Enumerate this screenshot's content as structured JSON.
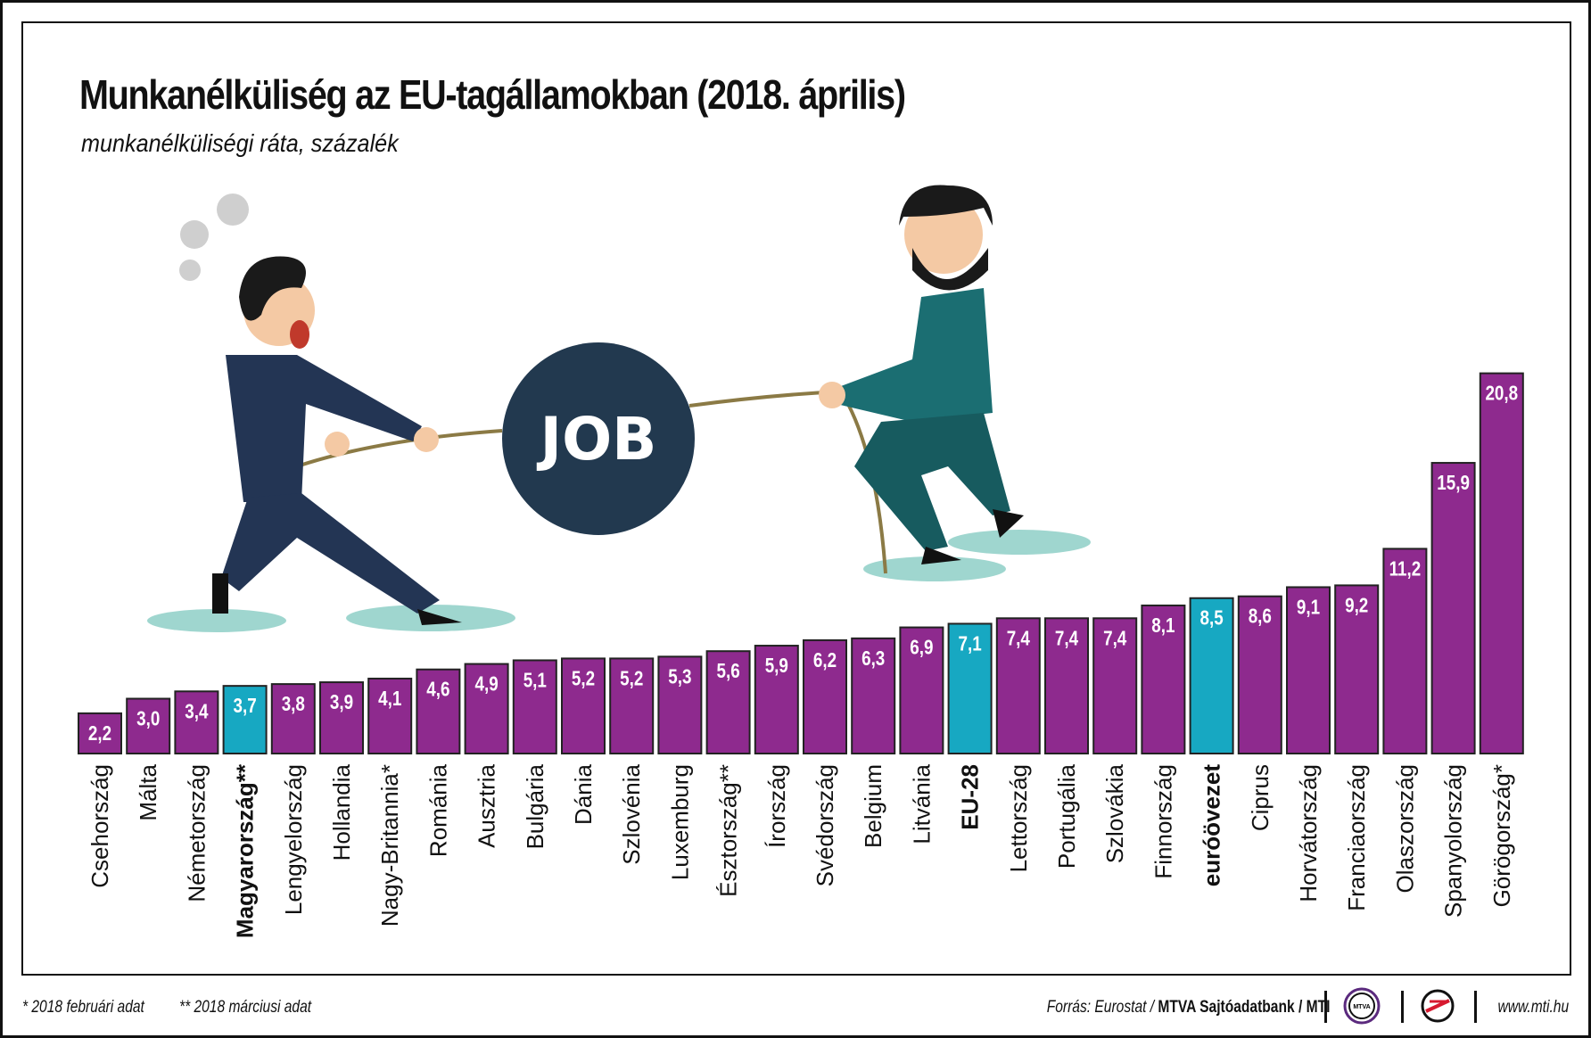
{
  "title": "Munkanélküliség az EU-tagállamokban (2018. április)",
  "subtitle": "munkanélküliségi ráta, százalék",
  "illustration": {
    "ball_text": "JOB"
  },
  "footer": {
    "note1": "* 2018 februári adat",
    "note2": "** 2018 márciusi adat",
    "source_prefix": "Forrás: Eurostat / ",
    "source_bold": "MTVA Sajtóadatbank",
    "source_suffix": " / MTI",
    "logo1_text": "MTVA",
    "url": "www.mti.hu"
  },
  "chart_data": {
    "type": "bar",
    "title": "Munkanélküliség az EU-tagállamokban (2018. április)",
    "subtitle": "munkanélküliségi ráta, százalék",
    "categories": [
      "Csehország",
      "Málta",
      "Németország",
      "Magyarország**",
      "Lengyelország",
      "Hollandia",
      "Nagy-Britannia*",
      "Románia",
      "Ausztria",
      "Bulgária",
      "Dánia",
      "Szlovénia",
      "Luxemburg",
      "Észtország**",
      "Írország",
      "Svédország",
      "Belgium",
      "Litvánia",
      "EU-28",
      "Lettország",
      "Portugália",
      "Szlovákia",
      "Finnország",
      "euróövezet",
      "Ciprus",
      "Horvátország",
      "Franciaország",
      "Olaszország",
      "Spanyolország",
      "Görögország*"
    ],
    "values": [
      2.2,
      3.0,
      3.4,
      3.7,
      3.8,
      3.9,
      4.1,
      4.6,
      4.9,
      5.1,
      5.2,
      5.2,
      5.3,
      5.6,
      5.9,
      6.2,
      6.3,
      6.9,
      7.1,
      7.4,
      7.4,
      7.4,
      8.1,
      8.5,
      8.6,
      9.1,
      9.2,
      11.2,
      15.9,
      20.8
    ],
    "value_labels": [
      "2,2",
      "3,0",
      "3,4",
      "3,7",
      "3,8",
      "3,9",
      "4,1",
      "4,6",
      "4,9",
      "5,1",
      "5,2",
      "5,2",
      "5,3",
      "5,6",
      "5,9",
      "6,2",
      "6,3",
      "6,9",
      "7,1",
      "7,4",
      "7,4",
      "7,4",
      "8,1",
      "8,5",
      "8,6",
      "9,1",
      "9,2",
      "11,2",
      "15,9",
      "20,8"
    ],
    "highlighted": [
      "Magyarország**",
      "EU-28",
      "euróövezet"
    ],
    "colors": {
      "default": "#8e2a8e",
      "highlight": "#17a8c2"
    },
    "xlabel": "",
    "ylabel": "",
    "ylim": [
      0,
      21
    ],
    "grid": false,
    "legend": "none"
  }
}
